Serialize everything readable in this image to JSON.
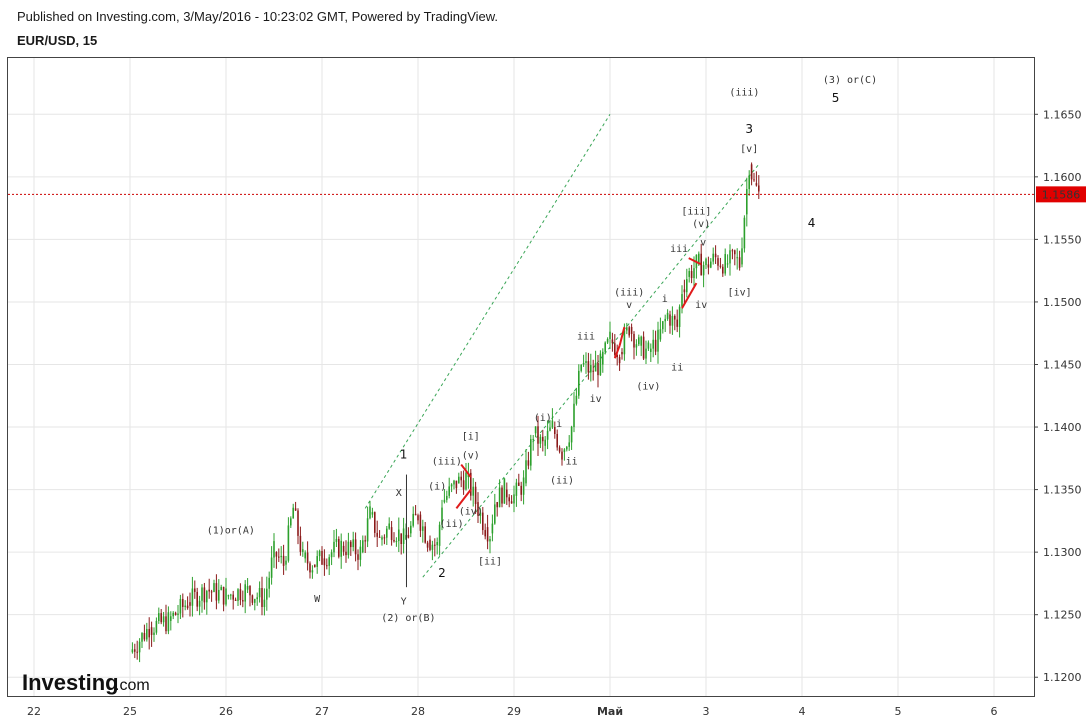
{
  "header": {
    "published": "Published on Investing.com, 3/May/2016 - 10:23:02 GMT, Powered by TradingView.",
    "symbol": "EUR/USD, 15"
  },
  "logo": {
    "main": "Investing",
    "sub": ".com"
  },
  "colors": {
    "up_candle": "#2ca02c",
    "down_candle": "#8b1a1a",
    "channel": "#3aa657",
    "last_price_line": "#cc0000",
    "last_price_tag": "#e00000",
    "grid": "#e6e6e6",
    "wave_iii_magenta": "#d633d6",
    "correction_marker": "#e01b1b"
  },
  "chart_data": {
    "type": "line",
    "title": "EUR/USD, 15",
    "x_tick_labels": [
      "22",
      "25",
      "26",
      "27",
      "28",
      "29",
      "Май",
      "3",
      "4",
      "5",
      "6"
    ],
    "y_ticks": [
      "1.1200",
      "1.1250",
      "1.1300",
      "1.1350",
      "1.1400",
      "1.1450",
      "1.1500",
      "1.1550",
      "1.1600",
      "1.1650"
    ],
    "ylim": [
      1.1185,
      1.1695
    ],
    "grid": true,
    "last_price": 1.1586,
    "last_price_label": "1.1586",
    "series": [
      {
        "values_note": "",
        "x": [
          25.0,
          25.2,
          25.4,
          25.6,
          25.8,
          26.0,
          26.2,
          26.4,
          26.5,
          26.6,
          26.7,
          26.8,
          26.9,
          27.0,
          27.2,
          27.4,
          27.5,
          27.6,
          27.7,
          27.8,
          27.85,
          27.9,
          28.0,
          28.1,
          28.2,
          28.25,
          28.3,
          28.4,
          28.5,
          28.6,
          28.7,
          28.75,
          28.8,
          28.9,
          29.0,
          29.1,
          29.2,
          29.3,
          29.4,
          29.5,
          29.6,
          29.7,
          29.8,
          29.9,
          30.0,
          30.1,
          30.2,
          30.3,
          30.4,
          30.5,
          30.6,
          30.7,
          30.75,
          30.8,
          30.9,
          31.0,
          31.1,
          31.2,
          31.3,
          31.35,
          31.4,
          31.45,
          31.5,
          31.55
        ],
        "values": [
          1.122,
          1.124,
          1.1245,
          1.126,
          1.127,
          1.1265,
          1.127,
          1.1262,
          1.13,
          1.129,
          1.1335,
          1.1295,
          1.129,
          1.1295,
          1.1305,
          1.13,
          1.133,
          1.131,
          1.132,
          1.1315,
          1.131,
          1.1315,
          1.133,
          1.131,
          1.1305,
          1.134,
          1.1345,
          1.1355,
          1.136,
          1.134,
          1.132,
          1.1315,
          1.134,
          1.135,
          1.1345,
          1.1355,
          1.1395,
          1.1385,
          1.14,
          1.138,
          1.14,
          1.145,
          1.1445,
          1.145,
          1.147,
          1.146,
          1.148,
          1.1465,
          1.146,
          1.147,
          1.149,
          1.148,
          1.151,
          1.152,
          1.153,
          1.153,
          1.1535,
          1.153,
          1.1535,
          1.153,
          1.157,
          1.161,
          1.1595,
          1.1586
        ]
      }
    ],
    "channel_lines": [
      {
        "x": [
          27.45,
          30.0
        ],
        "y": [
          1.1335,
          1.165
        ]
      },
      {
        "x": [
          28.05,
          31.55
        ],
        "y": [
          1.128,
          1.161
        ]
      }
    ],
    "annotations": [
      {
        "text": "(1)or(A)",
        "x": 26.05,
        "y": 1.1315,
        "style": "small"
      },
      {
        "text": "W",
        "x": 26.95,
        "y": 1.126,
        "style": "small"
      },
      {
        "text": "X",
        "x": 27.8,
        "y": 1.1345,
        "style": "small"
      },
      {
        "text": "1",
        "x": 27.85,
        "y": 1.1375,
        "style": "big"
      },
      {
        "text": "Y",
        "x": 27.85,
        "y": 1.1258,
        "style": "small"
      },
      {
        "text": "(2) or(B)",
        "x": 27.9,
        "y": 1.1245,
        "style": "small"
      },
      {
        "text": "(i)",
        "x": 28.2,
        "y": 1.135,
        "style": "small"
      },
      {
        "text": "(iii)",
        "x": 28.3,
        "y": 1.137,
        "style": "small"
      },
      {
        "text": "[i]",
        "x": 28.55,
        "y": 1.139,
        "style": "small"
      },
      {
        "text": "(v)",
        "x": 28.55,
        "y": 1.1375,
        "style": "small"
      },
      {
        "text": "(ii)",
        "x": 28.35,
        "y": 1.132,
        "style": "small"
      },
      {
        "text": "(iv)",
        "x": 28.55,
        "y": 1.133,
        "style": "small"
      },
      {
        "text": "2",
        "x": 28.25,
        "y": 1.128,
        "style": "big"
      },
      {
        "text": "[ii]",
        "x": 28.75,
        "y": 1.129,
        "style": "small"
      },
      {
        "text": "(i)",
        "x": 29.3,
        "y": 1.1405,
        "style": "small"
      },
      {
        "text": "i",
        "x": 29.47,
        "y": 1.14,
        "style": "small"
      },
      {
        "text": "ii",
        "x": 29.6,
        "y": 1.137,
        "style": "small"
      },
      {
        "text": "(ii)",
        "x": 29.5,
        "y": 1.1355,
        "style": "small"
      },
      {
        "text": "iii",
        "x": 29.75,
        "y": 1.147,
        "style": "small"
      },
      {
        "text": "iv",
        "x": 29.85,
        "y": 1.142,
        "style": "small"
      },
      {
        "text": "(iii)",
        "x": 30.2,
        "y": 1.1505,
        "style": "small"
      },
      {
        "text": "v",
        "x": 30.2,
        "y": 1.1495,
        "style": "small"
      },
      {
        "text": "(iv)",
        "x": 30.4,
        "y": 1.143,
        "style": "small"
      },
      {
        "text": "i",
        "x": 30.57,
        "y": 1.15,
        "style": "small"
      },
      {
        "text": "ii",
        "x": 30.7,
        "y": 1.1445,
        "style": "small"
      },
      {
        "text": "iii",
        "x": 30.72,
        "y": 1.154,
        "style": "small"
      },
      {
        "text": "(v)",
        "x": 30.95,
        "y": 1.156,
        "style": "small"
      },
      {
        "text": "v",
        "x": 30.97,
        "y": 1.1545,
        "style": "small"
      },
      {
        "text": "iv",
        "x": 30.95,
        "y": 1.1495,
        "style": "small"
      },
      {
        "text": "[iii]",
        "x": 30.9,
        "y": 1.157,
        "style": "small"
      },
      {
        "text": "[iv]",
        "x": 31.35,
        "y": 1.1505,
        "style": "small"
      },
      {
        "text": "3",
        "x": 31.45,
        "y": 1.1635,
        "style": "big"
      },
      {
        "text": "[v]",
        "x": 31.45,
        "y": 1.162,
        "style": "small"
      },
      {
        "text": "(iii)",
        "x": 31.4,
        "y": 1.1665,
        "style": "magenta"
      },
      {
        "text": "5",
        "x": 32.35,
        "y": 1.166,
        "style": "big"
      },
      {
        "text": "(3) or(C)",
        "x": 32.5,
        "y": 1.1675,
        "style": "small"
      },
      {
        "text": "4",
        "x": 32.1,
        "y": 1.156,
        "style": "big"
      }
    ]
  }
}
